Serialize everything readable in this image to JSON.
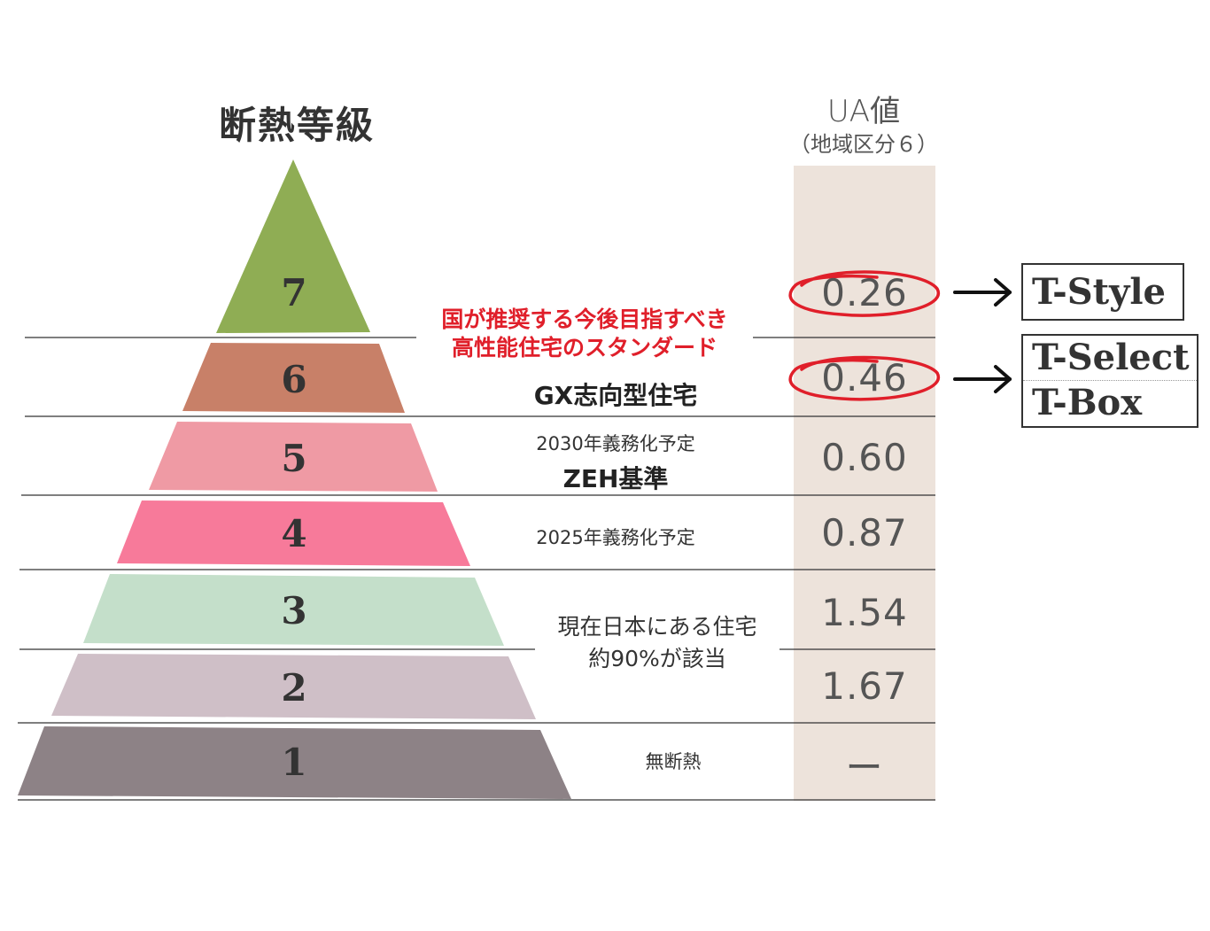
{
  "header": {
    "title": "断熱等級",
    "ua_title": "UA値",
    "ua_subtitle": "（地域区分６）"
  },
  "levels": [
    {
      "grade": "7",
      "color": "#8fad54",
      "ua": "0.26",
      "circled": true
    },
    {
      "grade": "6",
      "color": "#c88068",
      "ua": "0.46",
      "circled": true
    },
    {
      "grade": "5",
      "color": "#ef9aa4",
      "ua": "0.60",
      "circled": false
    },
    {
      "grade": "4",
      "color": "#f77a9a",
      "ua": "0.87",
      "circled": false
    },
    {
      "grade": "3",
      "color": "#c4dfca",
      "ua": "1.54",
      "circled": false
    },
    {
      "grade": "2",
      "color": "#cfbfc7",
      "ua": "1.67",
      "circled": false
    },
    {
      "grade": "1",
      "color": "#8d8286",
      "ua": "ー",
      "circled": false
    }
  ],
  "notes": {
    "recommend_line1": "国が推奨する今後目指すべき",
    "recommend_line2": "高性能住宅のスタンダード",
    "gx": "GX志向型住宅",
    "y2030": "2030年義務化予定",
    "zeh": "ZEH基準",
    "y2025": "2025年義務化予定",
    "current_line1": "現在日本にある住宅",
    "current_line2": "約90%が該当",
    "none": "無断熱"
  },
  "models": {
    "grade7": [
      "T-Style"
    ],
    "grade6": [
      "T-Select",
      "T-Box"
    ]
  },
  "colors": {
    "ua_column": "#ede3db",
    "circle": "#e01f2a",
    "recommend_text": "#e01f2a"
  }
}
